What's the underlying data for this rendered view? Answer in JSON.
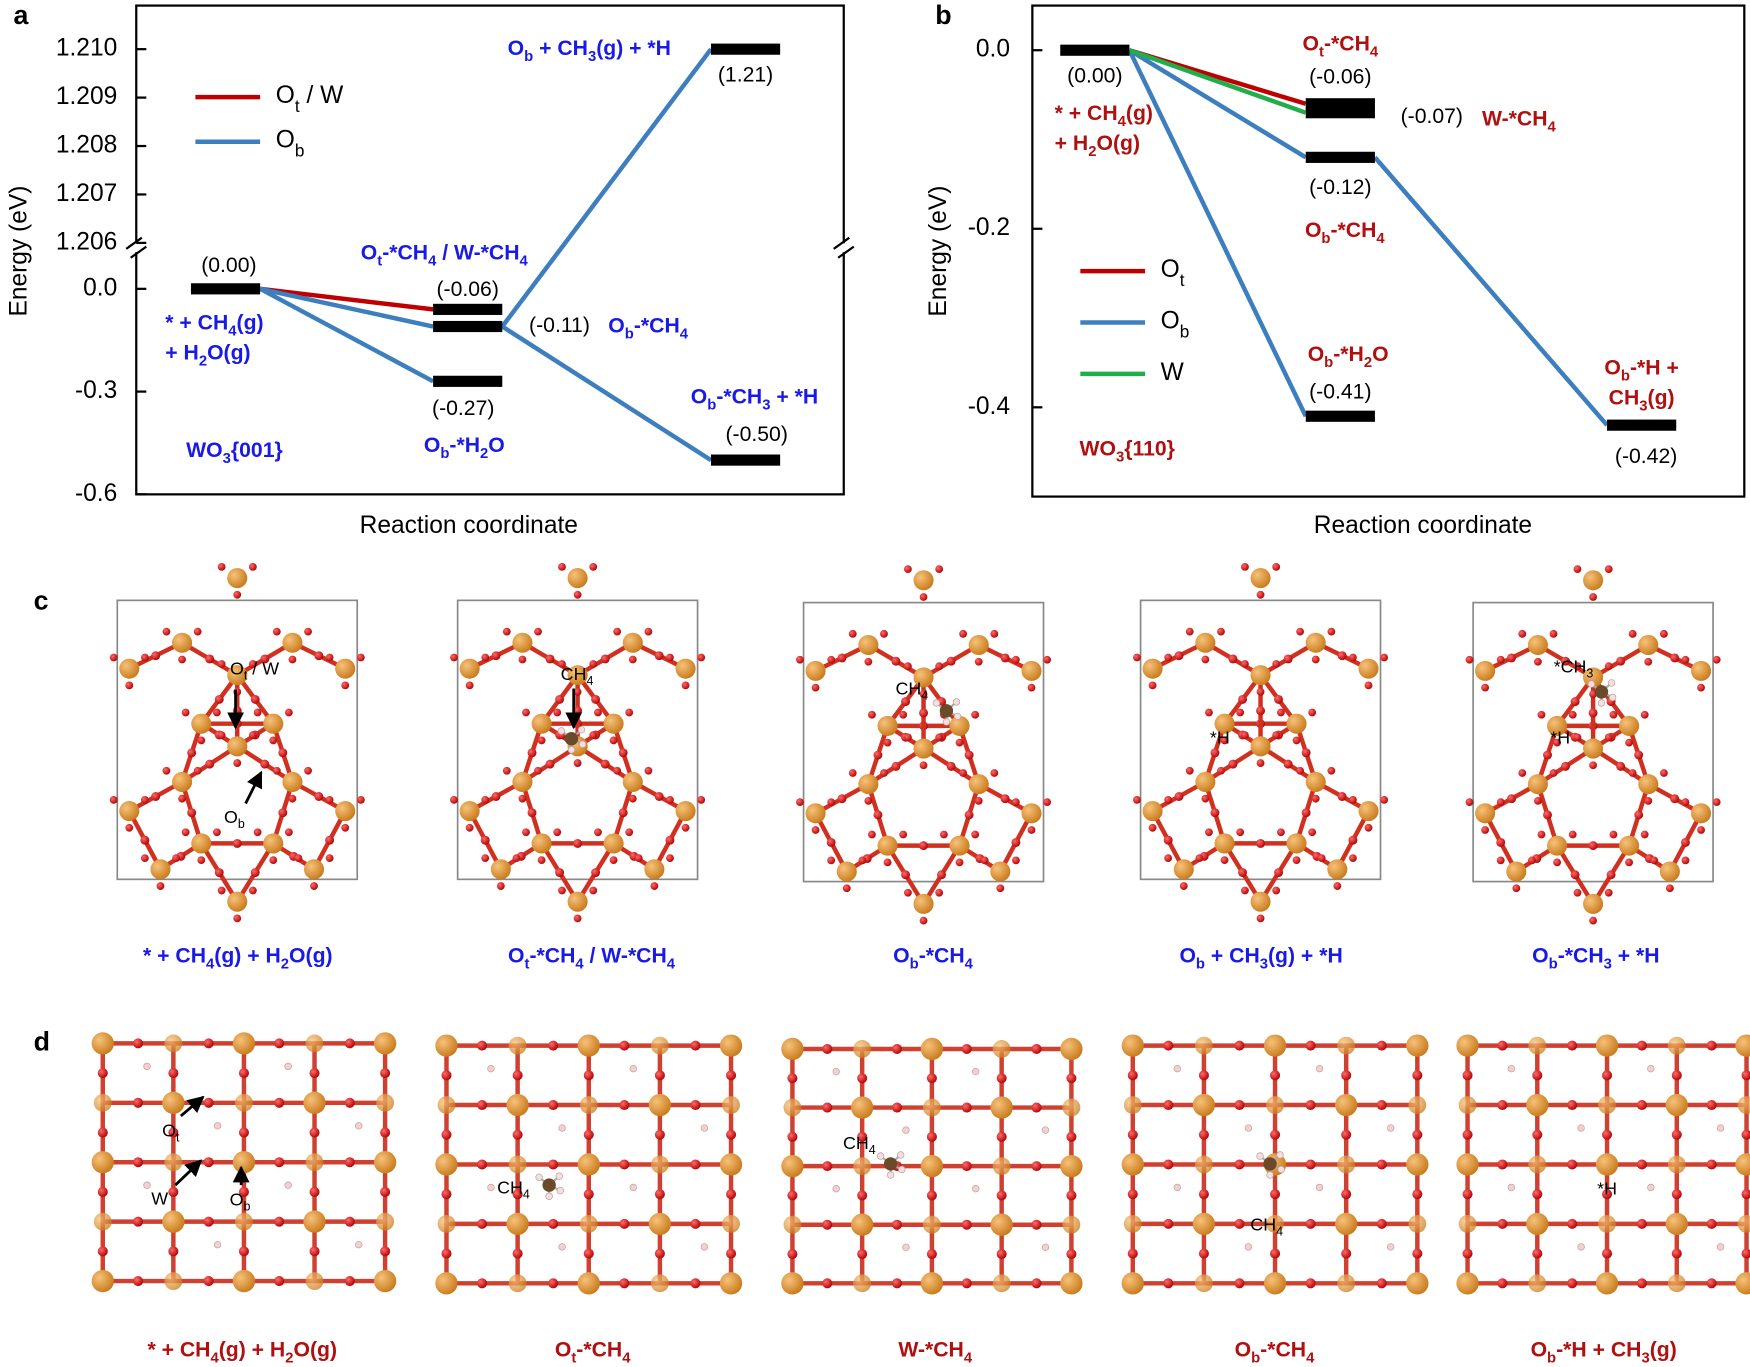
{
  "chart_data": [
    {
      "type": "energy-diagram",
      "panel": "a",
      "ylabel": "Energy (eV)",
      "xlabel": "Reaction coordinate",
      "ylim": [
        -0.6,
        0.12
      ],
      "yticks": [
        {
          "value": 0,
          "label": "0.0"
        },
        -0.3,
        -0.6
      ],
      "ylim_break": [
        1.2059,
        1.2109
      ],
      "yticks_break": [
        1.206,
        1.207,
        1.208,
        1.209,
        {
          "value": 1.21,
          "label": "1.210"
        }
      ],
      "annotation": "WO3{001}",
      "label_color": "#1a1ae6",
      "levels": [
        {
          "step": 0,
          "value": 0,
          "value_label": "(0.00)",
          "name": [
            "* + CH4(g)",
            "+ H2O(g)"
          ]
        },
        {
          "step": 1,
          "value": -0.06,
          "value_label": "(-0.06)",
          "name": [
            "Ot-*CH4 / W-*CH4"
          ]
        },
        {
          "step": 1,
          "value": -0.11,
          "value_label": "(-0.11)",
          "name": [
            "Ob-*CH4"
          ]
        },
        {
          "step": 1,
          "value": -0.27,
          "value_label": "(-0.27)",
          "name": [
            "Ob-*H2O"
          ]
        },
        {
          "step": 2,
          "value": 1.21,
          "value_label": "(1.21)",
          "name": [
            "Ob + CH3(g) + *H"
          ]
        },
        {
          "step": 2,
          "value": -0.5,
          "value_label": "(-0.50)",
          "name": [
            "Ob-*CH3 + *H"
          ]
        }
      ],
      "series": [
        {
          "name": "Ot / W",
          "color": "#c00000",
          "links": [
            [
              0,
              1
            ]
          ]
        },
        {
          "name": "Ob",
          "color": "#3d7ebf",
          "links": [
            [
              0,
              2
            ],
            [
              0,
              3
            ],
            [
              2,
              4
            ],
            [
              2,
              5
            ]
          ]
        }
      ]
    },
    {
      "type": "energy-diagram",
      "panel": "b",
      "ylabel": "Energy (eV)",
      "xlabel": "Reaction coordinate",
      "ylim": [
        -0.5,
        0.05
      ],
      "yticks": [
        {
          "value": 0,
          "label": "0.0"
        },
        -0.2,
        -0.4
      ],
      "annotation": "WO3{110}",
      "label_color": "#b01010",
      "levels": [
        {
          "step": 0,
          "value": 0,
          "value_label": "(0.00)",
          "name": [
            "* + CH4(g)",
            "+ H2O(g)"
          ]
        },
        {
          "step": 1,
          "value": -0.06,
          "value_label": "(-0.06)",
          "name": [
            "Ot-*CH4"
          ]
        },
        {
          "step": 1,
          "value": -0.07,
          "value_label": "(-0.07)",
          "name": [
            "W-*CH4"
          ]
        },
        {
          "step": 1,
          "value": -0.12,
          "value_label": "(-0.12)",
          "name": [
            "Ob-*CH4"
          ]
        },
        {
          "step": 1,
          "value": -0.41,
          "value_label": "(-0.41)",
          "name": [
            "Ob-*H2O"
          ]
        },
        {
          "step": 2,
          "value": -0.42,
          "value_label": "(-0.42)",
          "name": [
            "Ob-*H +",
            "CH3(g)"
          ]
        }
      ],
      "series": [
        {
          "name": "Ot",
          "color": "#c00000",
          "links": [
            [
              0,
              1
            ]
          ]
        },
        {
          "name": "Ob",
          "color": "#3d7ebf",
          "links": [
            [
              0,
              3
            ],
            [
              0,
              4
            ],
            [
              3,
              5
            ]
          ]
        },
        {
          "name": "W",
          "color": "#1fae4b",
          "links": [
            [
              0,
              2
            ]
          ]
        }
      ]
    }
  ],
  "structures": [
    {
      "panel": "c",
      "caption_color": "#1a1ae6",
      "captions": [
        "* + CH4(g) + H2O(g)",
        "Ot-*CH4 / W-*CH4",
        "Ob-*CH4",
        "Ob + CH3(g) + *H",
        "Ob-*CH3 + *H"
      ],
      "annotations": [
        [
          "Ot / W",
          "Ob"
        ],
        [
          "CH4"
        ],
        [
          "CH4"
        ],
        [
          "*H"
        ],
        [
          "*CH3",
          "*H"
        ]
      ]
    },
    {
      "panel": "d",
      "caption_color": "#b01010",
      "captions": [
        "* + CH4(g) + H2O(g)",
        "Ot-*CH4",
        "W-*CH4",
        "Ob-*CH4",
        "Ob-*H + CH3(g)"
      ],
      "annotations": [
        [
          "Ot",
          "W",
          "Ob"
        ],
        [
          "CH4"
        ],
        [
          "CH4"
        ],
        [
          "CH4"
        ],
        [
          "*H"
        ]
      ]
    }
  ]
}
